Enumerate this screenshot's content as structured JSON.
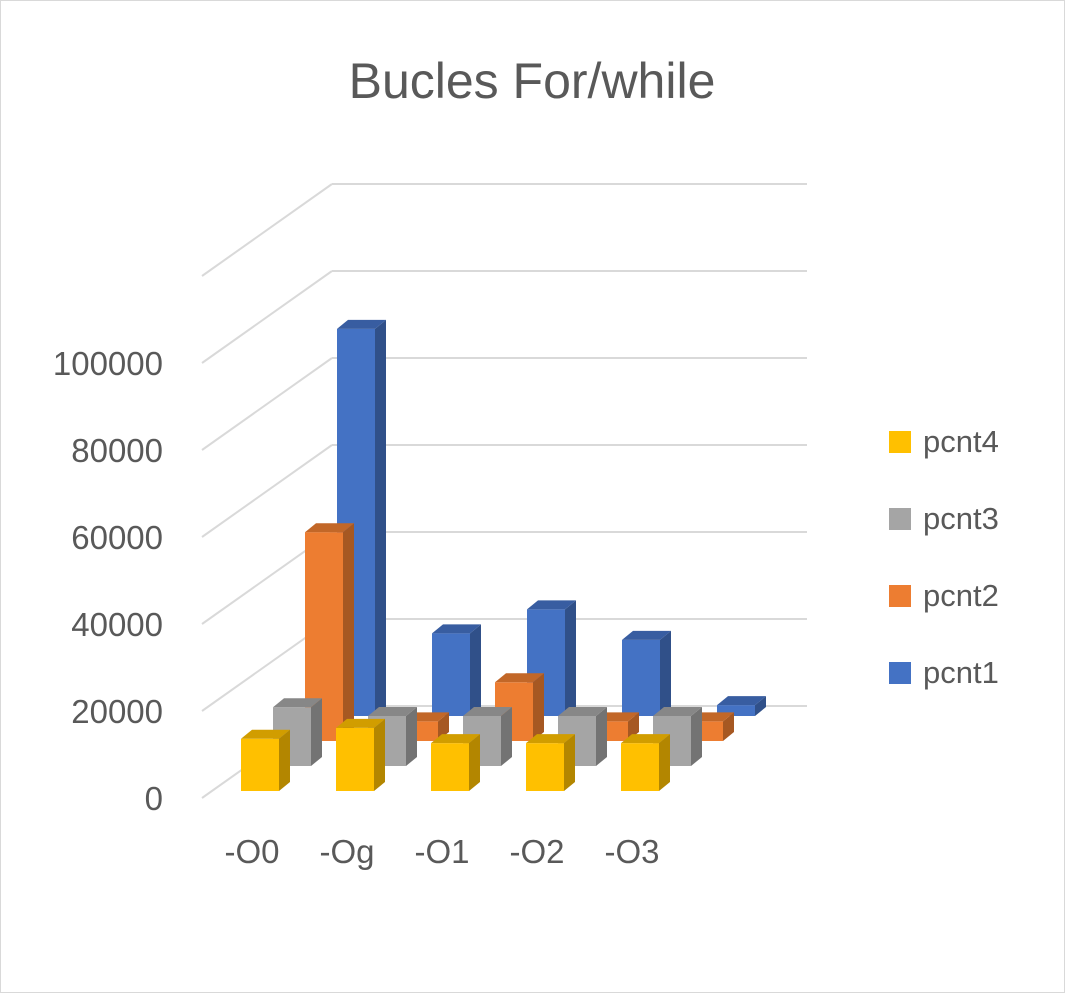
{
  "chart_data": {
    "type": "bar",
    "subtype": "3d-column",
    "title": "Bucles For/while",
    "xlabel": "",
    "ylabel": "",
    "categories": [
      "-O0",
      "-Og",
      "-O1",
      "-O2",
      "-O3"
    ],
    "series": [
      {
        "name": "pcnt4",
        "values": [
          12000,
          14500,
          11000,
          11000,
          11000
        ],
        "color": "#FFC000"
      },
      {
        "name": "pcnt3",
        "values": [
          13500,
          11500,
          11500,
          11500,
          11500
        ],
        "color": "#A5A5A5"
      },
      {
        "name": "pcnt2",
        "values": [
          48000,
          4500,
          13500,
          4500,
          4500
        ],
        "color": "#ED7D31"
      },
      {
        "name": "pcnt1",
        "values": [
          89000,
          19000,
          24500,
          17500,
          2500
        ],
        "color": "#4472C4"
      }
    ],
    "yticks": [
      "0",
      "20000",
      "40000",
      "60000",
      "80000",
      "100000"
    ],
    "ylim": [
      0,
      120000
    ],
    "grid": true,
    "legend_position": "right",
    "legend_order": [
      "pcnt4",
      "pcnt3",
      "pcnt2",
      "pcnt1"
    ]
  }
}
